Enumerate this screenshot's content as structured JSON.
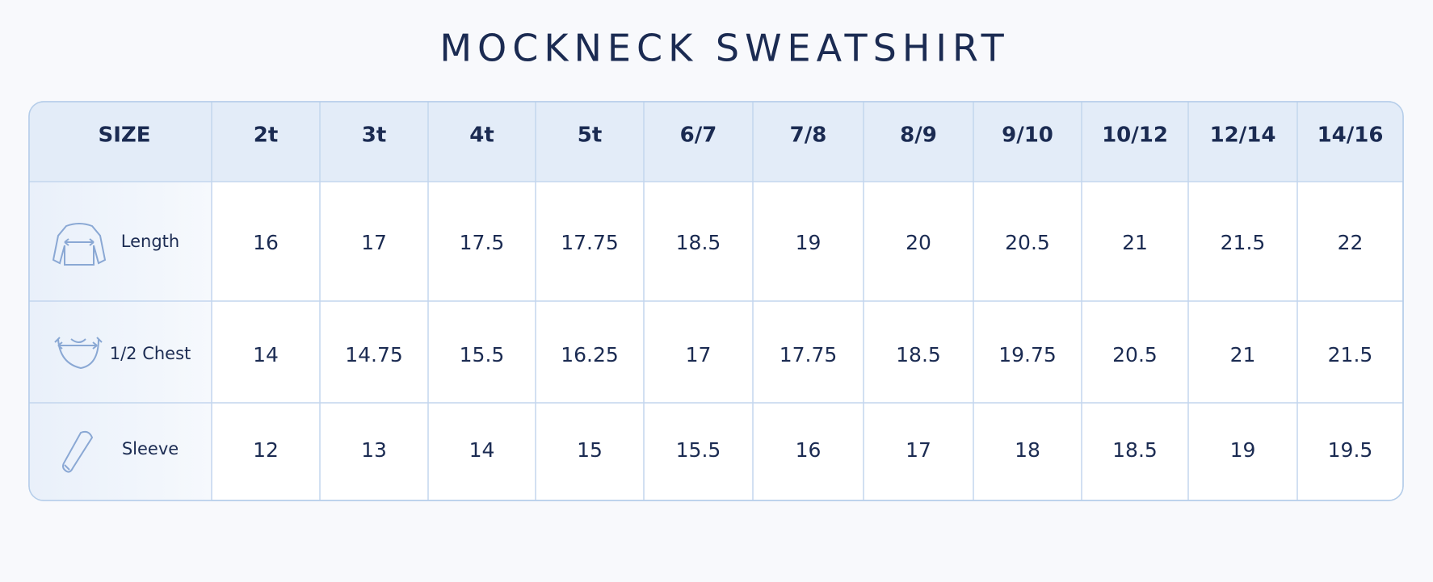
{
  "title": "MOCKNECK SWEATSHIRT",
  "table": {
    "header": [
      "SIZE",
      "2t",
      "3t",
      "4t",
      "5t",
      "6/7",
      "7/8",
      "8/9",
      "9/10",
      "10/12",
      "12/14",
      "14/16"
    ],
    "rows": [
      [
        "Length",
        16,
        17,
        17.5,
        17.75,
        18.5,
        19,
        20,
        20.5,
        21,
        21.5,
        22
      ],
      [
        "1/2 Chest",
        14,
        14.75,
        15.5,
        16.25,
        17,
        17.75,
        18.5,
        19.75,
        20.5,
        21,
        21.5
      ],
      [
        "Sleeve",
        12,
        13,
        14,
        15,
        15.5,
        16,
        17,
        18,
        18.5,
        19,
        19.5
      ]
    ]
  }
}
